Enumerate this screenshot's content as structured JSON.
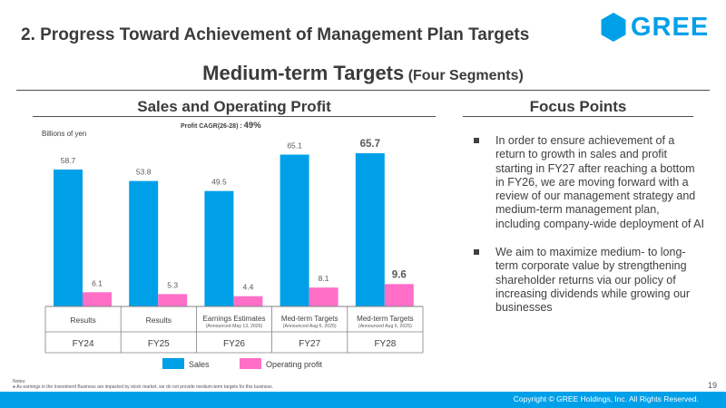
{
  "header": {
    "title": "2. Progress Toward Achievement of Management Plan Targets",
    "logo_text": "GREE"
  },
  "subtitle": {
    "main": "Medium-term Targets",
    "paren": "(Four Segments)"
  },
  "left_section": {
    "title": "Sales and Operating Profit"
  },
  "right_section": {
    "title": "Focus Points"
  },
  "chart_data": {
    "type": "bar",
    "unit_label": "Billions of yen",
    "cagr_label": "Profit CAGR(26-28)",
    "cagr_sep": ":",
    "cagr_value": "49%",
    "categories": [
      {
        "row1": "Results",
        "row1_sub": "",
        "fy": "FY24"
      },
      {
        "row1": "Results",
        "row1_sub": "",
        "fy": "FY25"
      },
      {
        "row1": "Earnings Estimates",
        "row1_sub": "(Announced May 13, 2026)",
        "fy": "FY26"
      },
      {
        "row1": "Med-term Targets",
        "row1_sub": "(Announced Aug 6, 2025)",
        "fy": "FY27"
      },
      {
        "row1": "Med-term Targets",
        "row1_sub": "(Announced Aug 6, 2025)",
        "fy": "FY28"
      }
    ],
    "series": [
      {
        "name": "Sales",
        "color": "#00a0e9",
        "values": [
          58.7,
          53.8,
          49.5,
          65.1,
          65.7
        ],
        "labels": [
          "58.7",
          "53.8",
          "49.5",
          "65.1",
          "65.7"
        ]
      },
      {
        "name": "Operating profit",
        "color": "#ff6fc8",
        "values": [
          6.1,
          5.3,
          4.4,
          8.1,
          9.6
        ],
        "labels": [
          "6.1",
          "5.3",
          "4.4",
          "8.1",
          "9.6"
        ]
      }
    ],
    "highlight_index": 4,
    "ylim": [
      0,
      70
    ],
    "legend_position": "bottom"
  },
  "focus_points": [
    "In order to ensure achievement of a return to growth in sales and profit starting in FY27 after reaching a bottom in FY26, we are moving forward with a review of our management strategy and medium-term management plan, including company-wide deployment of AI",
    "We aim to maximize medium- to long-term corporate value by strengthening shareholder returns via our policy of increasing dividends while growing our businesses"
  ],
  "notes": {
    "label": "Notes:",
    "items": [
      "As earnings in the Investment Business are impacted by stock market, we do not provide medium-term targets for this business."
    ]
  },
  "page_number": "19",
  "footer": {
    "copyright": "Copyright © GREE Holdings, Inc. All Rights Reserved."
  },
  "colors": {
    "accent": "#00a0e9",
    "profit": "#ff6fc8",
    "text": "#404040"
  }
}
